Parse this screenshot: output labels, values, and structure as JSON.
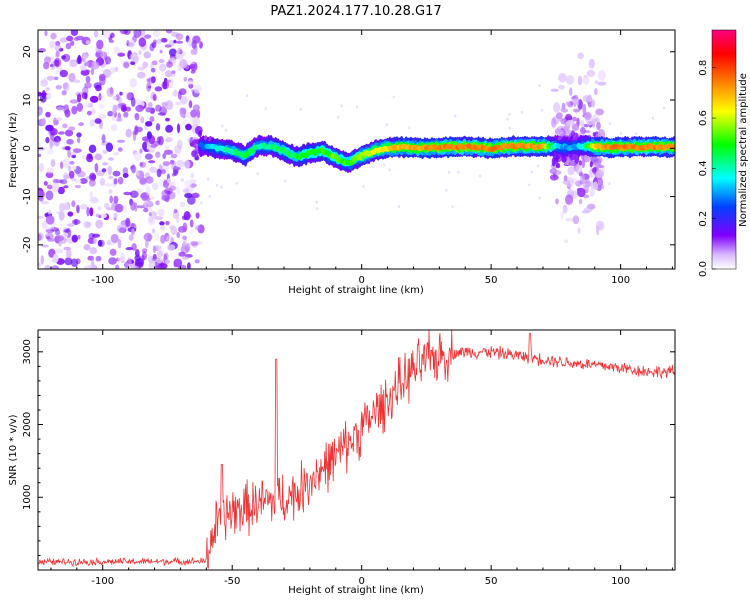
{
  "title": "PAZ1.2024.177.10.28.G17",
  "chart_data": [
    {
      "type": "heatmap",
      "xlabel": "Height of straight line (km)",
      "ylabel": "Frequency (Hz)",
      "xlim": [
        -125,
        121
      ],
      "ylim": [
        -25,
        24.5
      ],
      "xticks": [
        -100,
        -50,
        0,
        50,
        100
      ],
      "yticks": [
        -20,
        -10,
        0,
        10,
        20
      ],
      "colorbar": {
        "label": "Normalized spectral amplitude",
        "range": [
          0,
          0.95
        ],
        "ticks": [
          0.0,
          0.2,
          0.4,
          0.6,
          0.8
        ],
        "colormap": [
          "#ffffff",
          "#8000ff",
          "#0040ff",
          "#00ffff",
          "#00ff00",
          "#ffff00",
          "#ff8000",
          "#ff0000",
          "#ff0080"
        ]
      },
      "noise_region_x": [
        -125,
        -62
      ],
      "burst_region_x": [
        74,
        93
      ],
      "ridge": {
        "x": [
          -62,
          -55,
          -50,
          -45,
          -40,
          -35,
          -30,
          -25,
          -20,
          -15,
          -10,
          -5,
          0,
          5,
          10,
          15,
          20,
          30,
          40,
          50,
          60,
          70,
          75,
          80,
          85,
          90,
          95,
          100,
          110,
          121
        ],
        "y": [
          0.5,
          0.0,
          -0.5,
          -1.5,
          0.5,
          0.5,
          -0.5,
          -1.8,
          -1.0,
          -0.5,
          -2.0,
          -3.0,
          -1.5,
          -0.5,
          0.0,
          0.3,
          0.0,
          0.2,
          0.3,
          0.0,
          0.5,
          0.3,
          0.5,
          0.2,
          0.5,
          0.3,
          0.2,
          0.2,
          0.3,
          0.3
        ],
        "amplitude": [
          0.3,
          0.45,
          0.5,
          0.55,
          0.5,
          0.5,
          0.55,
          0.55,
          0.6,
          0.6,
          0.65,
          0.6,
          0.7,
          0.75,
          0.8,
          0.85,
          0.85,
          0.9,
          0.9,
          0.9,
          0.9,
          0.85,
          0.4,
          0.35,
          0.4,
          0.8,
          0.9,
          0.9,
          0.9,
          0.9
        ]
      }
    },
    {
      "type": "line",
      "xlabel": "Height of straight line (km)",
      "ylabel": "SNR (10 * v/v)",
      "xlim": [
        -125,
        121
      ],
      "ylim": [
        0,
        3300
      ],
      "xticks": [
        -100,
        -50,
        0,
        50,
        100
      ],
      "yticks": [
        1000,
        2000,
        3000
      ],
      "color": "#ee3333",
      "trend": {
        "x": [
          -125,
          -60,
          -58,
          -55,
          -50,
          -45,
          -40,
          -35,
          -30,
          -25,
          -20,
          -15,
          -10,
          -5,
          0,
          5,
          10,
          15,
          20,
          25,
          30,
          35,
          40,
          50,
          60,
          70,
          80,
          90,
          100,
          110,
          121
        ],
        "y": [
          110,
          120,
          450,
          700,
          800,
          850,
          900,
          950,
          1000,
          1050,
          1250,
          1400,
          1550,
          1750,
          1950,
          2150,
          2350,
          2550,
          2750,
          2880,
          2950,
          2980,
          3000,
          3000,
          2950,
          2900,
          2850,
          2820,
          2780,
          2730,
          2720
        ]
      },
      "noise_amplitude": [
        {
          "x": [
            -125,
            -60
          ],
          "amp": 60
        },
        {
          "x": [
            -60,
            35
          ],
          "amp": 450
        },
        {
          "x": [
            35,
            121
          ],
          "amp": 110
        }
      ],
      "spikes": [
        {
          "x": -33,
          "y": 2900
        },
        {
          "x": -54,
          "y": 1450
        },
        {
          "x": 65,
          "y": 3250
        }
      ]
    }
  ]
}
